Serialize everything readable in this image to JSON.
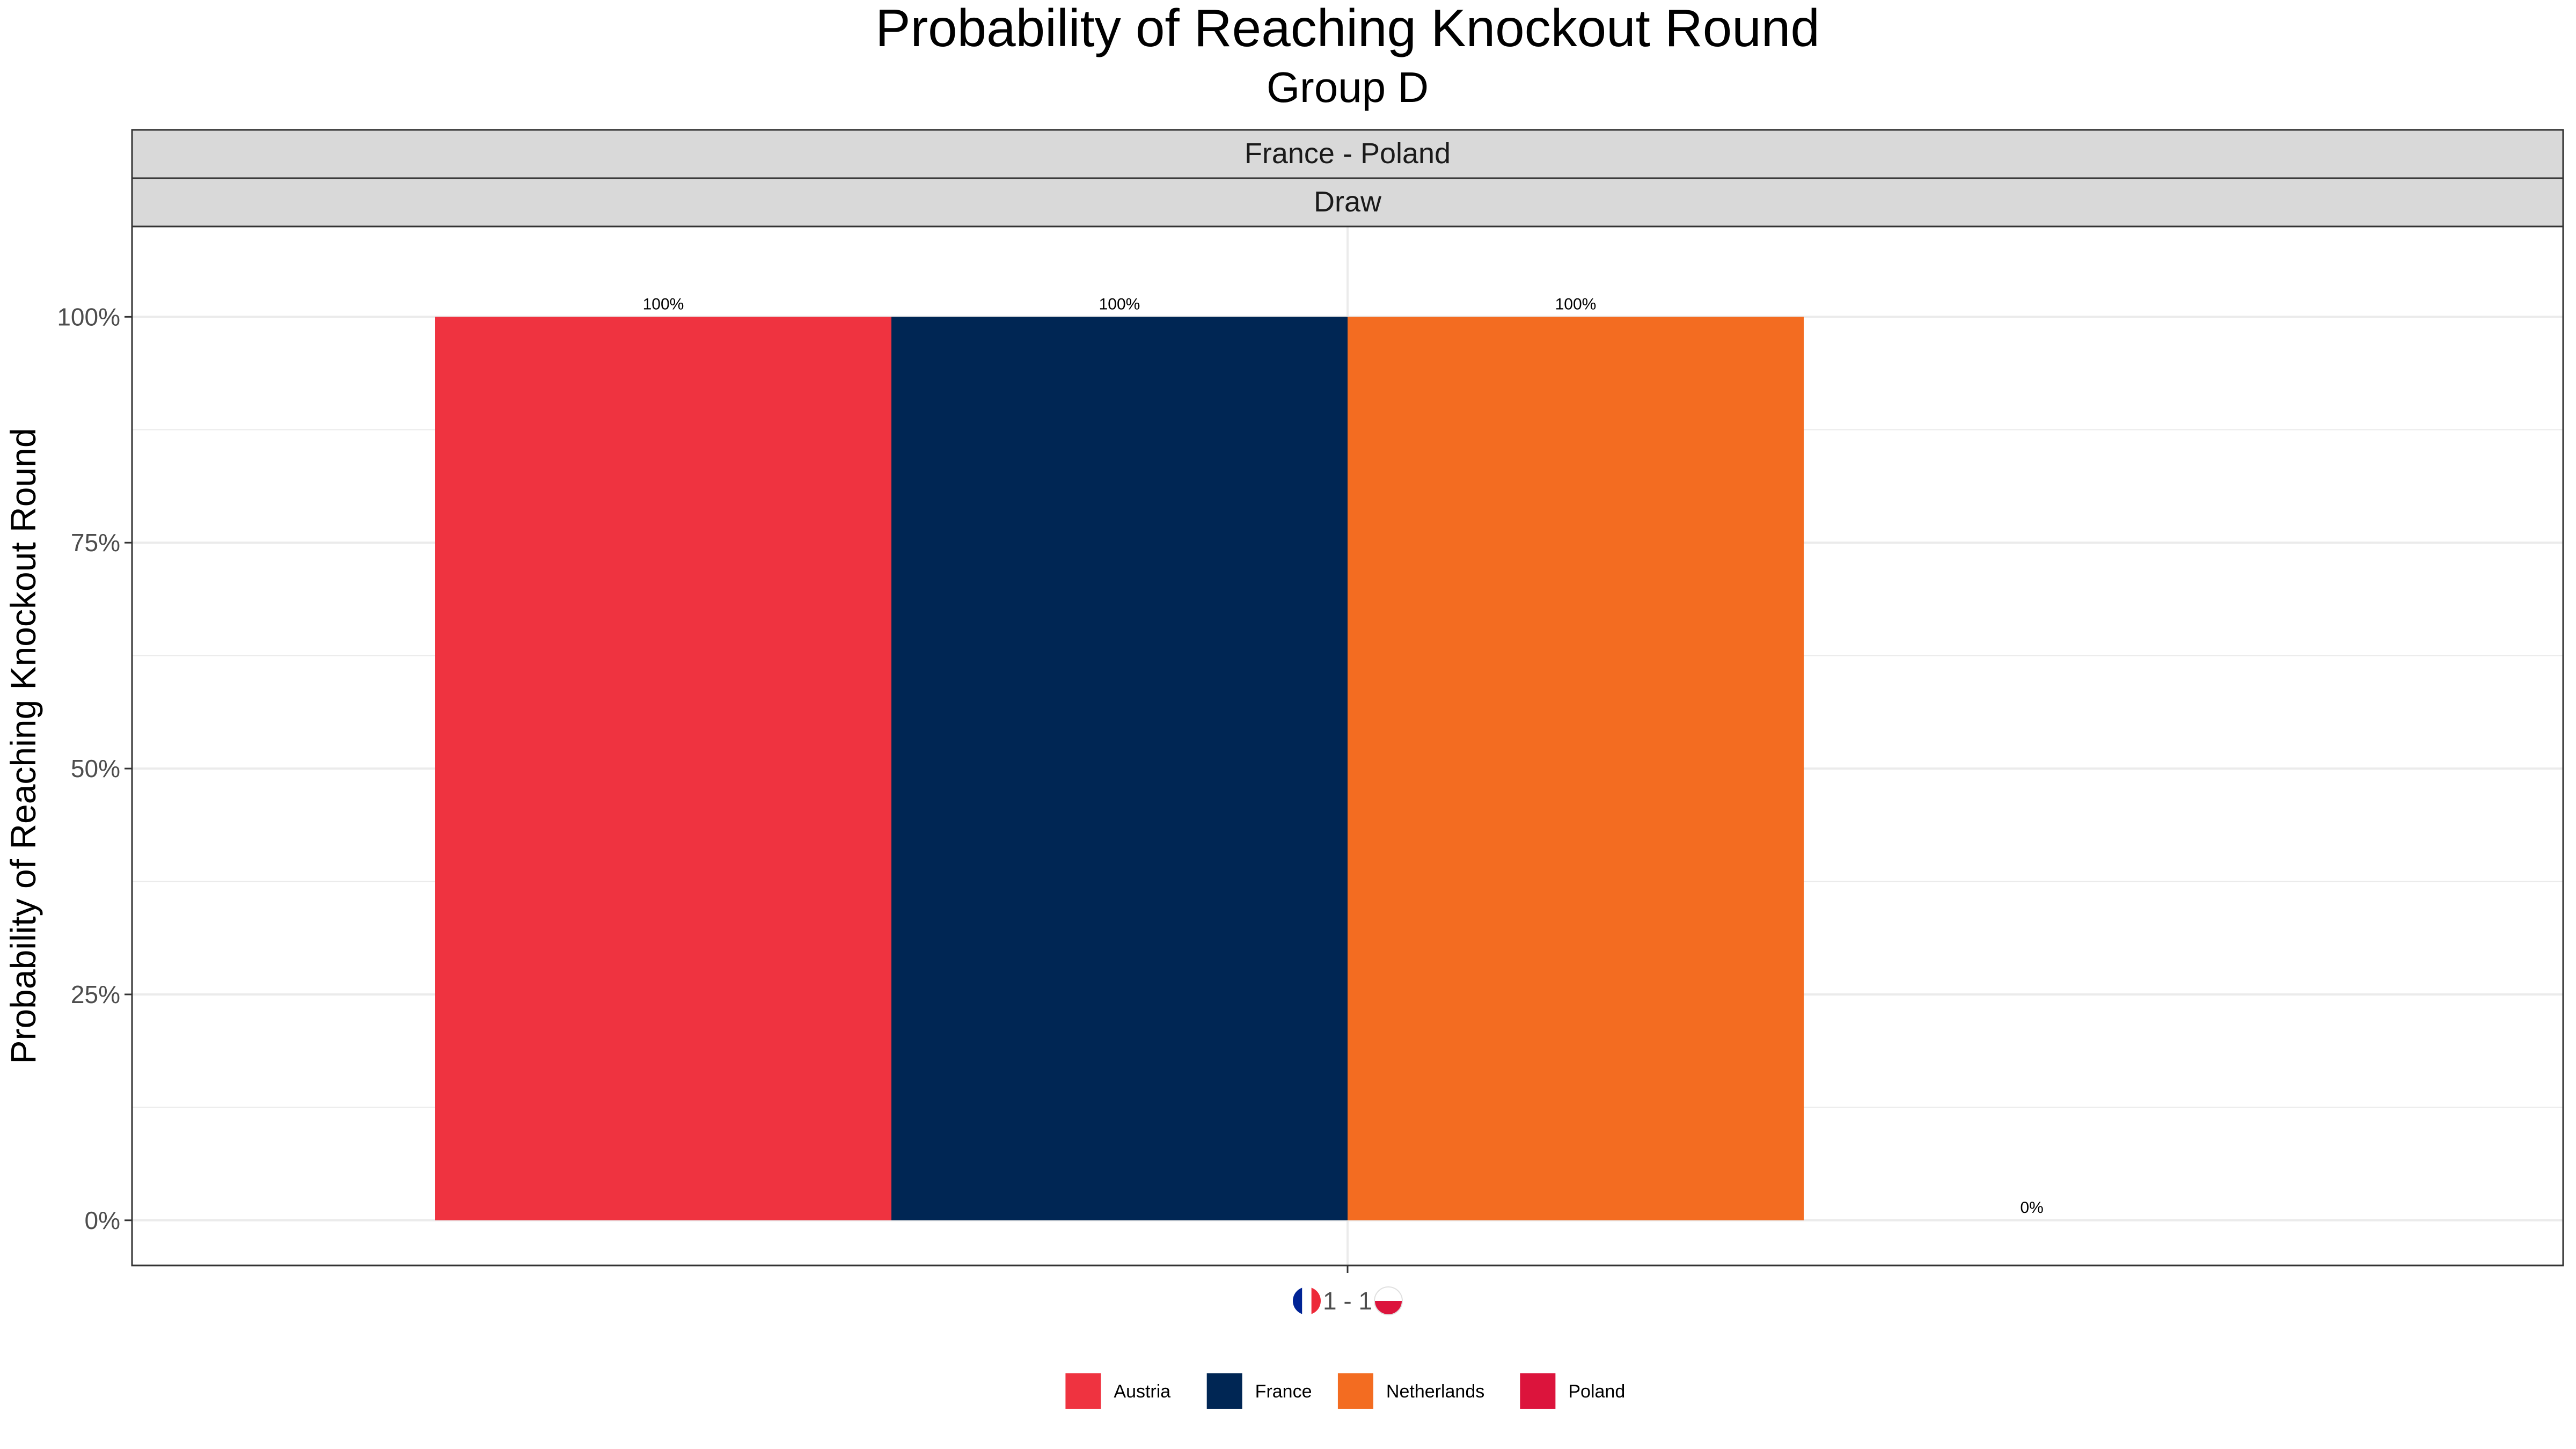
{
  "chart_data": {
    "type": "bar",
    "title": "Probability of Reaching Knockout Round",
    "subtitle": "Group D",
    "facet_labels": [
      "France - Poland",
      "Draw"
    ],
    "ylabel": "Probability of Reaching Knockout Round",
    "xlabel": "",
    "ylim": [
      0,
      1.1
    ],
    "y_ticks": [
      0,
      0.25,
      0.5,
      0.75,
      1.0
    ],
    "y_tick_labels": [
      "0%",
      "25%",
      "50%",
      "75%",
      "100%"
    ],
    "categories": [
      "1 - 1"
    ],
    "x_flags": [
      "france-flag-icon",
      "poland-flag-icon"
    ],
    "grid": true,
    "legend_position": "bottom",
    "series": [
      {
        "name": "Austria",
        "color": "#EF3340",
        "values": [
          1.0
        ],
        "label": "100%"
      },
      {
        "name": "France",
        "color": "#002654",
        "values": [
          1.0
        ],
        "label": "100%"
      },
      {
        "name": "Netherlands",
        "color": "#F36C21",
        "values": [
          1.0
        ],
        "label": "100%"
      },
      {
        "name": "Poland",
        "color": "#DC143C",
        "values": [
          0.0
        ],
        "label": "0%"
      }
    ]
  }
}
